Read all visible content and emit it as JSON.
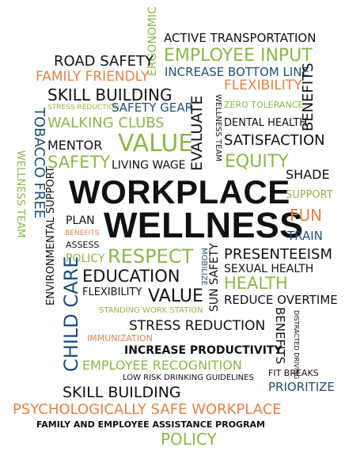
{
  "colors": {
    "black": "#111111",
    "green": "#8bb84a",
    "blue": "#1e4f7a",
    "orange": "#e3824a"
  },
  "words": {
    "ergonomic": "ERGONOMIC",
    "active_transportation": "ACTIVE TRANSPORTATION",
    "road_safety": "ROAD SAFETY",
    "employee_input": "EMPLOYEE INPUT",
    "family_friendly": "FAMILY FRIENDLY",
    "ergonomic_vertical": "ERGONOMIC",
    "increase_bottom_line": "INCREASE BOTTOM LINE",
    "skill_building_top": "SKILL BUILDING",
    "flexibility_top": "FLEXIBILITY",
    "benefits_top": "BENEFITS",
    "stress_reduction_small": "STRESS REDUCTION",
    "safety_gear": "SAFETY GEAR",
    "wellness_team_small": "WELLNESS TEAM",
    "zero_tolerance": "ZERO TOLERANCE",
    "tobacco_free": "TOBACCO FREE",
    "walking_clubs": "WALKING CLUBS",
    "evaluate": "EVALUATE",
    "dental_health": "DENTAL HEALTH",
    "wellness_team_left": "WELLNESS TEAM",
    "mentor": "MENTOR",
    "value_top": "VALUE",
    "satisfaction": "SATISFACTION",
    "safety": "SAFETY",
    "living_wage": "LIVING WAGE",
    "equity": "EQUITY",
    "shade": "SHADE",
    "workplace": "WORKPLACE",
    "support": "SUPPORT",
    "environmental_support": "ENVIRONMENTAL SUPPORT",
    "plan": "PLAN",
    "wellness": "WELLNESS",
    "fun": "FUN",
    "benefits_small": "BENEFITS",
    "assess": "ASSESS",
    "train": "TRAIN",
    "policy_small": "POLICY",
    "respect": "RESPECT",
    "mobilize": "MOBILIZE",
    "presenteeism": "PRESENTEEISM",
    "child_care": "CHILD CARE",
    "education": "EDUCATION",
    "sun_safety": "SUN SAFETY",
    "sexual_health": "SEXUAL HEALTH",
    "health": "HEALTH",
    "flexibility_mid": "FLEXIBILITY",
    "value_mid": "VALUE",
    "reduce_overtime": "REDUCE OVERTIME",
    "standing_work_station": "STANDING WORK STATION",
    "benefits_right": "BENEFITS",
    "stress_reduction": "STRESS REDUCTION",
    "distracted_driving": "DISTRACTED DRIVING",
    "immunization": "IMMUNIZATION",
    "increase_productivity": "INCREASE PRODUCTIVITY",
    "employee_recognition": "EMPLOYEE RECOGNITION",
    "fit_breaks": "FIT BREAKS",
    "low_risk_drinking": "LOW RISK DRINKING GUIDELINES",
    "prioritize": "PRIORITIZE",
    "skill_building_bottom": "SKILL BUILDING",
    "psych_safe": "PSYCHOLOGICALLY SAFE WORKPLACE",
    "family_employee_assistance": "FAMILY AND EMPLOYEE ASSISTANCE PROGRAM",
    "policy_bottom": "POLICY"
  }
}
